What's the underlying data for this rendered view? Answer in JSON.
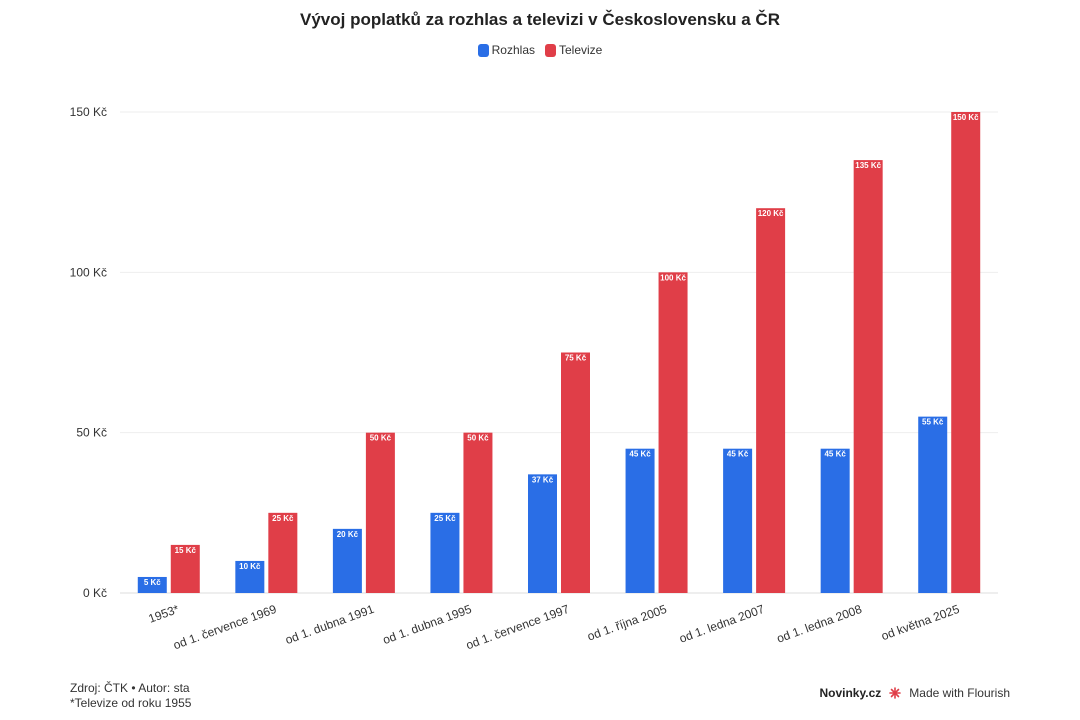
{
  "title": "Vývoj poplatků za rozhlas a televizi v Československu a ČR",
  "colors": {
    "rozhlas": "#2a6ee6",
    "televize": "#e03e48"
  },
  "chart_data": {
    "type": "bar",
    "categories": [
      "1953*",
      "od 1. července 1969",
      "od 1. dubna 1991",
      "od 1. dubna 1995",
      "od 1. července 1997",
      "od 1. října 2005",
      "od 1. ledna 2007",
      "od 1. ledna 2008",
      "od května 2025"
    ],
    "series": [
      {
        "name": "Rozhlas",
        "values": [
          5,
          10,
          20,
          25,
          37,
          45,
          45,
          45,
          55
        ],
        "labels": [
          "5 Kč",
          "10 Kč",
          "20 Kč",
          "25 Kč",
          "37 Kč",
          "45 Kč",
          "45 Kč",
          "45 Kč",
          "55 Kč"
        ]
      },
      {
        "name": "Televize",
        "values": [
          15,
          25,
          50,
          50,
          75,
          100,
          120,
          135,
          150
        ],
        "labels": [
          "15 Kč",
          "25 Kč",
          "50 Kč",
          "50 Kč",
          "75 Kč",
          "100 Kč",
          "120 Kč",
          "135 Kč",
          "150 Kč"
        ]
      }
    ],
    "yticks": [
      0,
      50,
      100,
      150
    ],
    "ytick_labels": [
      "0 Kč",
      "50 Kč",
      "100 Kč",
      "150 Kč"
    ],
    "ylim": [
      0,
      150
    ],
    "grid": true,
    "legend_position": "top-center"
  },
  "footer": {
    "source": "Zdroj: ČTK • Autor: sta",
    "note": "*Televize od roku 1955",
    "brand": "Novinky.cz",
    "made_with": "Made with Flourish"
  }
}
